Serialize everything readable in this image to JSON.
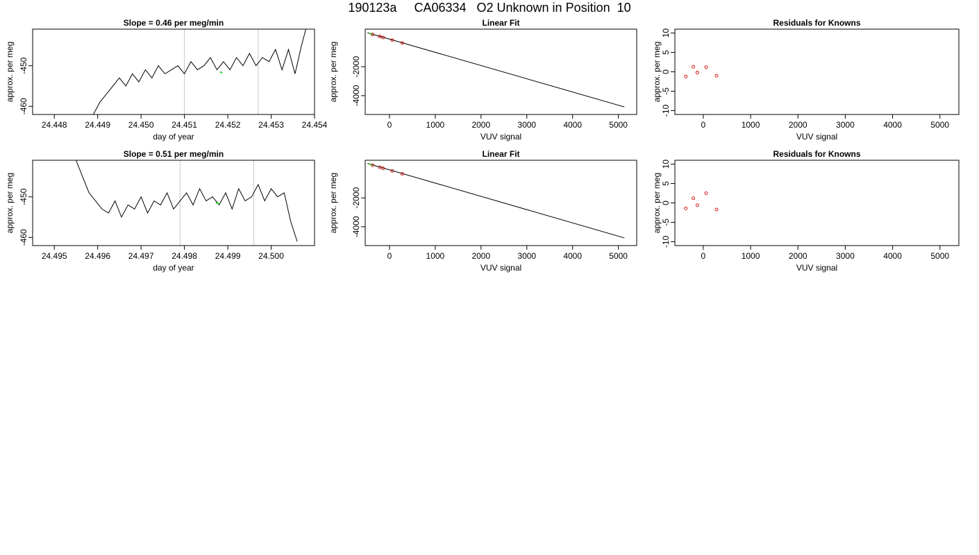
{
  "header": {
    "title": "190123a     CA06334   O2 Unknown in Position  10"
  },
  "colors": {
    "line": "#000000",
    "highlight": "#00cc00",
    "marker": "#cc0000",
    "gridline": "#c8c8c8"
  },
  "chart_data": [
    {
      "type": "line",
      "title": "Slope =  0.46  per meg/min",
      "xlabel": "day of year",
      "ylabel": "approx. per meg",
      "xlim": [
        24.4475,
        24.454
      ],
      "ylim": [
        -462,
        -441
      ],
      "xticks": [
        24.448,
        24.449,
        24.45,
        24.451,
        24.452,
        24.453,
        24.454
      ],
      "xtick_labels": [
        "24.448",
        "24.449",
        "24.450",
        "24.451",
        "24.452",
        "24.453",
        "24.454"
      ],
      "yticks": [
        -460,
        -450
      ],
      "ytick_labels": [
        "-460",
        "-450"
      ],
      "vlines": [
        24.451,
        24.4527
      ],
      "x": [
        24.4489,
        24.44905,
        24.4492,
        24.44935,
        24.4495,
        24.44965,
        24.4498,
        24.44995,
        24.4501,
        24.45025,
        24.4504,
        24.45055,
        24.4507,
        24.45085,
        24.451,
        24.45115,
        24.4513,
        24.45145,
        24.4516,
        24.45175,
        24.4519,
        24.45205,
        24.4522,
        24.45235,
        24.4525,
        24.45265,
        24.4528,
        24.45295,
        24.4531,
        24.45325,
        24.4534,
        24.45355,
        24.4537,
        24.4538
      ],
      "y": [
        -462,
        -459,
        -457,
        -455,
        -453,
        -455,
        -452,
        -454,
        -451,
        -453,
        -450,
        -452,
        -451,
        -450,
        -452,
        -449,
        -451,
        -450,
        -448,
        -451,
        -449,
        -451,
        -448,
        -450,
        -447,
        -450,
        -448,
        -449,
        -446,
        -451,
        -446,
        -452,
        -445,
        -441
      ],
      "highlight_x": [
        24.45182,
        24.45187
      ],
      "highlight_y": [
        -451.5,
        -451.8
      ]
    },
    {
      "type": "scatter",
      "title": "Linear Fit",
      "xlabel": "VUV signal",
      "ylabel": "approx. per meg",
      "xlim": [
        -530,
        5400
      ],
      "ylim": [
        -5300,
        600
      ],
      "xticks": [
        0,
        1000,
        2000,
        3000,
        4000,
        5000
      ],
      "xtick_labels": [
        "0",
        "1000",
        "2000",
        "3000",
        "4000",
        "5000"
      ],
      "yticks": [
        -4000,
        -2000
      ],
      "ytick_labels": [
        "-4000",
        "-2000"
      ],
      "fit_line": {
        "x": [
          -480,
          5130
        ],
        "y": [
          350,
          -4780
        ]
      },
      "points": {
        "x": [
          -370,
          -210,
          -140,
          60,
          280
        ],
        "y": [
          230,
          90,
          20,
          -160,
          -360
        ]
      },
      "highlight": {
        "x": [
          -450,
          -370
        ],
        "y": [
          320,
          240
        ]
      }
    },
    {
      "type": "scatter",
      "title": "Residuals for Knowns",
      "xlabel": "VUV signal",
      "ylabel": "approx. per meg",
      "xlim": [
        -600,
        5400
      ],
      "ylim": [
        -11,
        11
      ],
      "xticks": [
        0,
        1000,
        2000,
        3000,
        4000,
        5000
      ],
      "xtick_labels": [
        "0",
        "1000",
        "2000",
        "3000",
        "4000",
        "5000"
      ],
      "yticks": [
        -10,
        -5,
        0,
        5,
        10
      ],
      "ytick_labels": [
        "-10",
        "-5",
        "0",
        "5",
        "10"
      ],
      "points": {
        "x": [
          -370,
          -210,
          -125,
          60,
          280
        ],
        "y": [
          -1.2,
          1.3,
          -0.2,
          1.2,
          -1.0
        ]
      }
    },
    {
      "type": "line",
      "title": "Slope =  0.51  per meg/min",
      "xlabel": "day of year",
      "ylabel": "approx. per meg",
      "xlim": [
        24.4945,
        24.501
      ],
      "ylim": [
        -462,
        -441
      ],
      "xticks": [
        24.495,
        24.496,
        24.497,
        24.498,
        24.499,
        24.5
      ],
      "xtick_labels": [
        "24.495",
        "24.496",
        "24.497",
        "24.498",
        "24.499",
        "24.500"
      ],
      "yticks": [
        -460,
        -450
      ],
      "ytick_labels": [
        "-460",
        "-450"
      ],
      "vlines": [
        24.4979,
        24.4996
      ],
      "x": [
        24.4955,
        24.49565,
        24.4958,
        24.49595,
        24.4961,
        24.49625,
        24.4964,
        24.49655,
        24.4967,
        24.49685,
        24.497,
        24.49715,
        24.4973,
        24.49745,
        24.4976,
        24.49775,
        24.4979,
        24.49805,
        24.4982,
        24.49835,
        24.4985,
        24.49865,
        24.4988,
        24.49895,
        24.4991,
        24.49925,
        24.4994,
        24.49955,
        24.4997,
        24.49985,
        24.5,
        24.50015,
        24.5003,
        24.50045,
        24.5006
      ],
      "y": [
        -441,
        -445,
        -449,
        -451,
        -453,
        -454,
        -451,
        -455,
        -452,
        -453,
        -450,
        -454,
        -451,
        -452,
        -449,
        -453,
        -451,
        -449,
        -452,
        -448,
        -451,
        -450,
        -452,
        -449,
        -453,
        -448,
        -451,
        -450,
        -447,
        -451,
        -448,
        -450,
        -449,
        -456,
        -461
      ],
      "highlight_x": [
        24.49872,
        24.49882
      ],
      "highlight_y": [
        -451.4,
        -451.8
      ]
    },
    {
      "type": "scatter",
      "title": "Linear Fit",
      "xlabel": "VUV signal",
      "ylabel": "approx. per meg",
      "xlim": [
        -530,
        5400
      ],
      "ylim": [
        -5300,
        600
      ],
      "xticks": [
        0,
        1000,
        2000,
        3000,
        4000,
        5000
      ],
      "xtick_labels": [
        "0",
        "1000",
        "2000",
        "3000",
        "4000",
        "5000"
      ],
      "yticks": [
        -4000,
        -2000
      ],
      "ytick_labels": [
        "-4000",
        "-2000"
      ],
      "fit_line": {
        "x": [
          -480,
          5130
        ],
        "y": [
          380,
          -4770
        ]
      },
      "points": {
        "x": [
          -370,
          -210,
          -140,
          60,
          280
        ],
        "y": [
          260,
          110,
          40,
          -140,
          -340
        ]
      },
      "highlight": {
        "x": [
          -450,
          -370
        ],
        "y": [
          350,
          270
        ]
      }
    },
    {
      "type": "scatter",
      "title": "Residuals for Knowns",
      "xlabel": "VUV signal",
      "ylabel": "approx. per meg",
      "xlim": [
        -600,
        5400
      ],
      "ylim": [
        -11,
        11
      ],
      "xticks": [
        0,
        1000,
        2000,
        3000,
        4000,
        5000
      ],
      "xtick_labels": [
        "0",
        "1000",
        "2000",
        "3000",
        "4000",
        "5000"
      ],
      "yticks": [
        -10,
        -5,
        0,
        5,
        10
      ],
      "ytick_labels": [
        "-10",
        "-5",
        "0",
        "5",
        "10"
      ],
      "points": {
        "x": [
          -370,
          -210,
          -125,
          60,
          280
        ],
        "y": [
          -1.4,
          1.2,
          -0.6,
          2.5,
          -1.7
        ]
      }
    }
  ]
}
